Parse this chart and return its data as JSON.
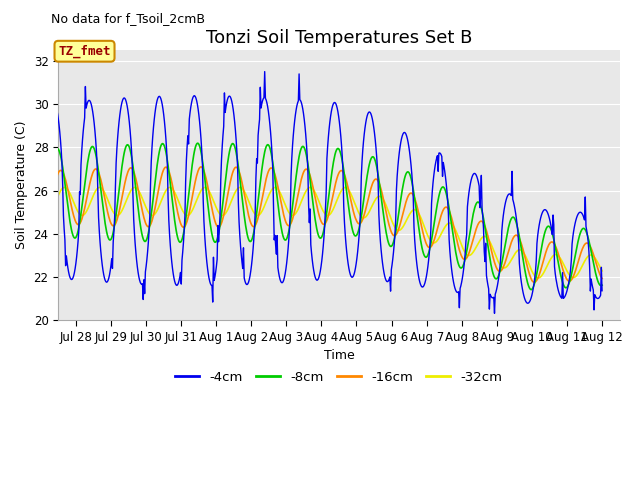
{
  "title": "Tonzi Soil Temperatures Set B",
  "subtitle": "No data for f_Tsoil_2cmB",
  "xlabel": "Time",
  "ylabel": "Soil Temperature (C)",
  "ylim": [
    20,
    32.5
  ],
  "yticks": [
    20,
    22,
    24,
    26,
    28,
    30,
    32
  ],
  "background_color": "#e8e8e8",
  "fig_color": "#ffffff",
  "line_colors": {
    "4cm": "#0000ee",
    "8cm": "#00cc00",
    "16cm": "#ff8800",
    "32cm": "#eeee00"
  },
  "legend_labels": [
    "-4cm",
    "-8cm",
    "-16cm",
    "-32cm"
  ],
  "tz_fmet_box": {
    "text": "TZ_fmet",
    "text_color": "#990000",
    "box_color": "#ffff99",
    "border_color": "#cc8800"
  },
  "title_fontsize": 13,
  "label_fontsize": 9,
  "tick_fontsize": 8.5,
  "subtitle_fontsize": 9
}
